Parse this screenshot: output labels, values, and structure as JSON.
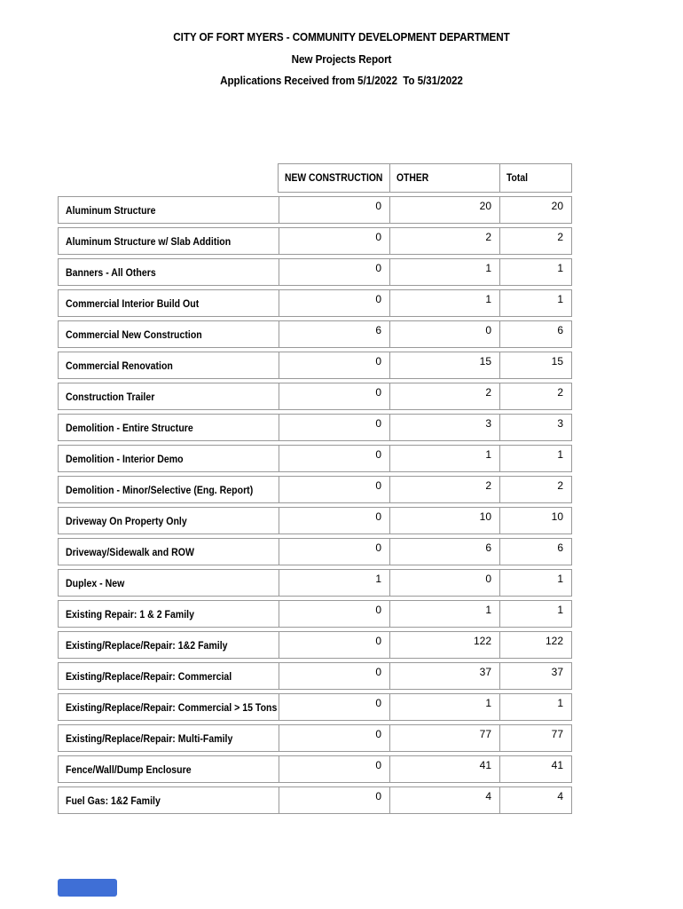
{
  "document": {
    "title_line1": "CITY OF FORT MYERS - COMMUNITY DEVELOPMENT DEPARTMENT",
    "title_line2": "New Projects Report",
    "title_line3": "Applications Received from 5/1/2022  To 5/31/2022"
  },
  "table": {
    "columns": [
      "NEW CONSTRUCTION",
      "OTHER",
      "Total"
    ],
    "rows": [
      {
        "label": "Aluminum Structure",
        "new_construction": 0,
        "other": 20,
        "total": 20
      },
      {
        "label": "Aluminum Structure w/ Slab Addition",
        "new_construction": 0,
        "other": 2,
        "total": 2
      },
      {
        "label": "Banners - All Others",
        "new_construction": 0,
        "other": 1,
        "total": 1
      },
      {
        "label": "Commercial Interior Build Out",
        "new_construction": 0,
        "other": 1,
        "total": 1
      },
      {
        "label": "Commercial New Construction",
        "new_construction": 6,
        "other": 0,
        "total": 6
      },
      {
        "label": "Commercial Renovation",
        "new_construction": 0,
        "other": 15,
        "total": 15
      },
      {
        "label": "Construction Trailer",
        "new_construction": 0,
        "other": 2,
        "total": 2
      },
      {
        "label": "Demolition - Entire Structure",
        "new_construction": 0,
        "other": 3,
        "total": 3
      },
      {
        "label": "Demolition - Interior Demo",
        "new_construction": 0,
        "other": 1,
        "total": 1
      },
      {
        "label": "Demolition - Minor/Selective (Eng. Report)",
        "new_construction": 0,
        "other": 2,
        "total": 2
      },
      {
        "label": "Driveway On Property Only",
        "new_construction": 0,
        "other": 10,
        "total": 10
      },
      {
        "label": "Driveway/Sidewalk and ROW",
        "new_construction": 0,
        "other": 6,
        "total": 6
      },
      {
        "label": "Duplex - New",
        "new_construction": 1,
        "other": 0,
        "total": 1
      },
      {
        "label": "Existing Repair: 1 & 2 Family",
        "new_construction": 0,
        "other": 1,
        "total": 1
      },
      {
        "label": "Existing/Replace/Repair: 1&2 Family",
        "new_construction": 0,
        "other": 122,
        "total": 122
      },
      {
        "label": "Existing/Replace/Repair: Commercial",
        "new_construction": 0,
        "other": 37,
        "total": 37
      },
      {
        "label": "Existing/Replace/Repair: Commercial > 15 Tons",
        "new_construction": 0,
        "other": 1,
        "total": 1
      },
      {
        "label": "Existing/Replace/Repair: Multi-Family",
        "new_construction": 0,
        "other": 77,
        "total": 77
      },
      {
        "label": "Fence/Wall/Dump Enclosure",
        "new_construction": 0,
        "other": 41,
        "total": 41
      },
      {
        "label": "Fuel Gas: 1&2 Family",
        "new_construction": 0,
        "other": 4,
        "total": 4
      }
    ]
  },
  "colors": {
    "table_border": "#999999",
    "text": "#000000",
    "bottom_bar_blue": "#3F6FD6"
  }
}
